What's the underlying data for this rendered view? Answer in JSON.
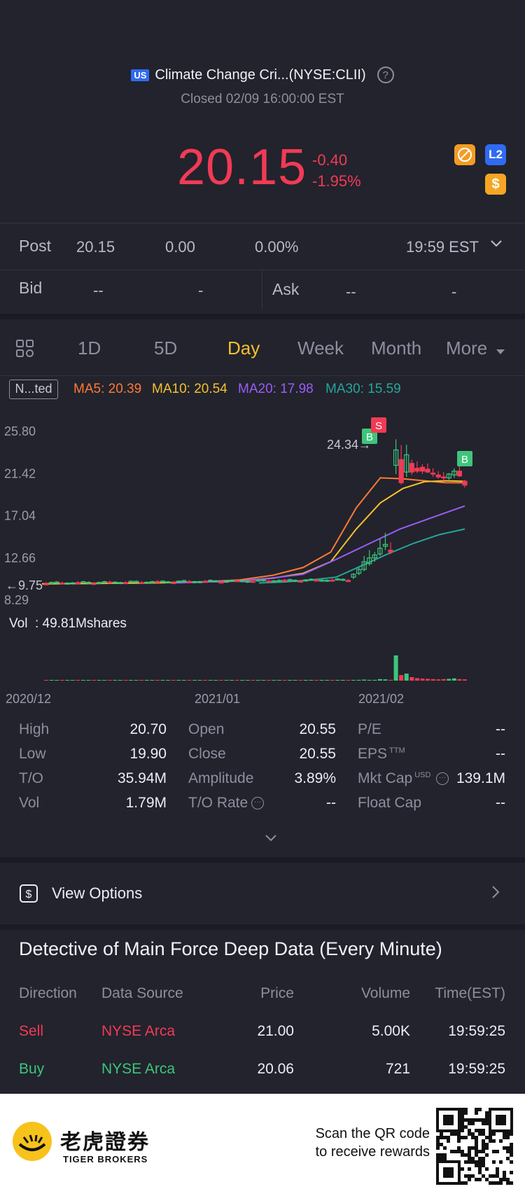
{
  "header": {
    "market_badge": "US",
    "title": "Climate Change Cri...(NYSE:CLII)",
    "status": "Closed 02/09 16:00:00 EST",
    "price": "20.15",
    "change_abs": "-0.40",
    "change_pct": "-1.95%",
    "l2_badge": "L2",
    "dollar_badge": "$"
  },
  "post": {
    "label": "Post",
    "price": "20.15",
    "change": "0.00",
    "pct": "0.00%",
    "time": "19:59 EST"
  },
  "bid": {
    "label": "Bid",
    "value1": "--",
    "value2": "-"
  },
  "ask": {
    "label": "Ask",
    "value1": "--",
    "value2": "-"
  },
  "tabs": [
    {
      "label": "1D"
    },
    {
      "label": "5D"
    },
    {
      "label": "Day"
    },
    {
      "label": "Week"
    },
    {
      "label": "Month"
    },
    {
      "label": "More"
    }
  ],
  "indicators": {
    "chip": "N...ted",
    "ma5": "MA5: 20.39",
    "ma10": "MA10: 20.54",
    "ma20": "MA20: 17.98",
    "ma30": "MA30: 15.59"
  },
  "chart_data": {
    "type": "candlestick",
    "y_ticks": [
      "25.80",
      "21.42",
      "17.04",
      "12.66",
      "8.29"
    ],
    "x_ticks": [
      "2020/12",
      "2021/01",
      "2021/02"
    ],
    "high_marker": "24.34",
    "low_marker": "9.75",
    "markers": [
      "B",
      "S",
      "B"
    ],
    "volume_label": "Vol  : 49.81Mshares",
    "ylim": [
      8.29,
      25.8
    ],
    "colors": {
      "up": "#3ec57a",
      "down": "#f23a55",
      "ma5": "#ff7a33",
      "ma10": "#f5c02c",
      "ma20": "#9b5cf5",
      "ma30": "#26a69a"
    },
    "series": [
      {
        "name": "MA5",
        "values": [
          9.9,
          10.0,
          10.1,
          10.3,
          10.8,
          11.6,
          13.2,
          17.8,
          20.9,
          20.8,
          20.6,
          20.4,
          20.39
        ]
      },
      {
        "name": "MA10",
        "values": [
          9.9,
          10.0,
          10.1,
          10.2,
          10.5,
          11.0,
          12.2,
          15.6,
          18.3,
          19.8,
          20.5,
          20.6,
          20.54
        ]
      },
      {
        "name": "MA20",
        "values": [
          10.0,
          10.1,
          10.2,
          10.5,
          10.9,
          12.4,
          14.0,
          15.6,
          16.8,
          17.98
        ]
      },
      {
        "name": "MA30",
        "values": [
          10.0,
          10.1,
          10.3,
          10.6,
          11.8,
          13.0,
          14.1,
          15.0,
          15.59
        ]
      }
    ]
  },
  "stats": [
    {
      "label": "High",
      "value": "20.70"
    },
    {
      "label": "Low",
      "value": "19.90"
    },
    {
      "label": "T/O",
      "value": "35.94M"
    },
    {
      "label": "Vol",
      "value": "1.79M"
    },
    {
      "label": "Open",
      "value": "20.55"
    },
    {
      "label": "Close",
      "value": "20.55"
    },
    {
      "label": "Amplitude",
      "value": "3.89%"
    },
    {
      "label": "T/O Rate",
      "value": "--"
    },
    {
      "label": "P/E",
      "value": "--"
    },
    {
      "label": "EPS",
      "value": "--",
      "sup": "TTM"
    },
    {
      "label": "Mkt Cap",
      "value": "139.1M",
      "sup": "USD"
    },
    {
      "label": "Float Cap",
      "value": "--"
    }
  ],
  "options": {
    "label": "View Options"
  },
  "detective": {
    "title": "Detective of Main Force Deep Data (Every Minute)",
    "columns": [
      "Direction",
      "Data Source",
      "Price",
      "Volume",
      "Time(EST)"
    ],
    "rows": [
      {
        "direction": "Sell",
        "source": "NYSE Arca",
        "price": "21.00",
        "volume": "5.00K",
        "time": "19:59:25"
      },
      {
        "direction": "Buy",
        "source": "NYSE Arca",
        "price": "20.06",
        "volume": "721",
        "time": "19:59:25"
      }
    ]
  },
  "footer": {
    "brand_cn": "老虎證券",
    "brand_en": "TIGER BROKERS",
    "cta_line1": "Scan the QR code",
    "cta_line2": "to receive rewards"
  }
}
